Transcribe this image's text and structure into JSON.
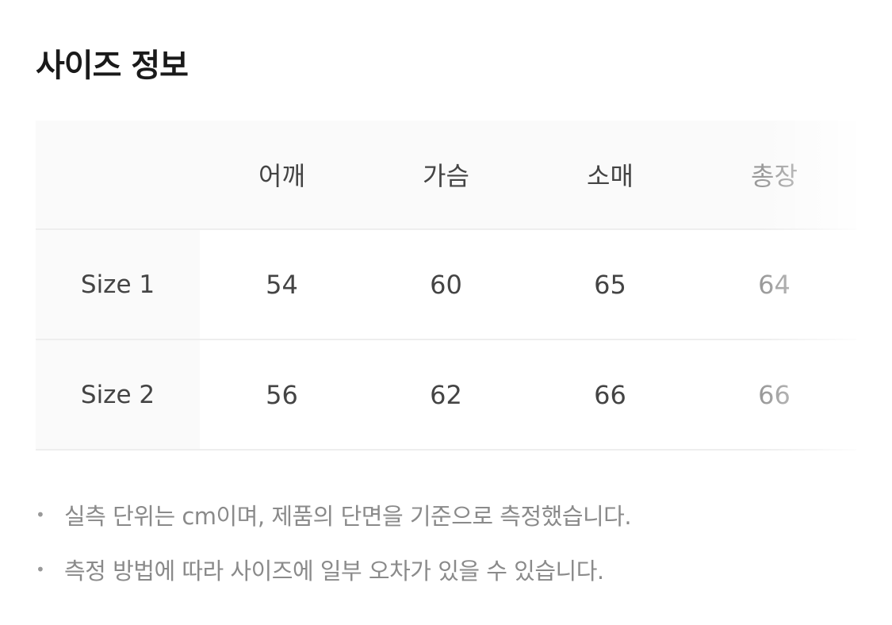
{
  "title": "사이즈 정보",
  "table": {
    "columns": [
      "어깨",
      "가슴",
      "소매",
      "총장"
    ],
    "rows": [
      {
        "label": "Size 1",
        "values": [
          "54",
          "60",
          "65",
          "64"
        ]
      },
      {
        "label": "Size 2",
        "values": [
          "56",
          "62",
          "66",
          "66"
        ]
      }
    ]
  },
  "notes": [
    "실측 단위는 cm이며, 제품의 단면을 기준으로 측정했습니다.",
    "측정 방법에 따라 사이즈에 일부 오차가 있을 수 있습니다."
  ],
  "bullet": "•"
}
